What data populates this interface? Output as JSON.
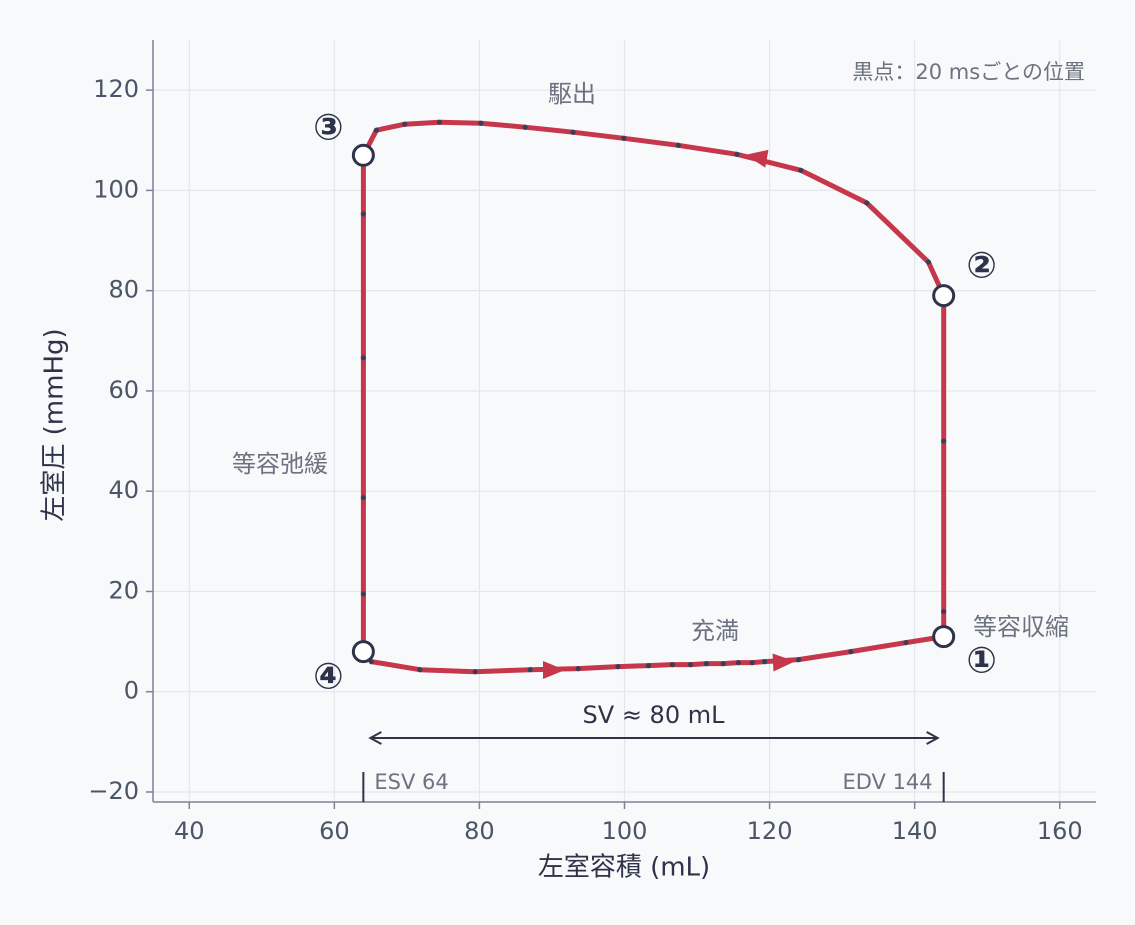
{
  "chart_data": {
    "type": "line",
    "x_label": "左室容積 (mL)",
    "y_label": "左室圧 (mmHg)",
    "xlim": [
      35,
      165
    ],
    "ylim": [
      -22,
      130
    ],
    "xticks": [
      40,
      60,
      80,
      100,
      120,
      140,
      160
    ],
    "yticks": [
      {
        "value": -20,
        "label": "−20"
      },
      0,
      20,
      40,
      60,
      80,
      100,
      120
    ],
    "grid": true,
    "series": [
      {
        "color": "#c7374b",
        "x": [
          144,
          144,
          144,
          144,
          141.9,
          133.4,
          124.3,
          115.5,
          107.4,
          99.9,
          92.9,
          86.3,
          80.2,
          74.5,
          69.7,
          65.8,
          64,
          64,
          64,
          64,
          64,
          64,
          65.1,
          71.8,
          79.4,
          87,
          93.6,
          99.1,
          103.3,
          106.6,
          109.1,
          111.3,
          113.6,
          115.7,
          117.6,
          119.3,
          124,
          131.2,
          138.8
        ],
        "y": [
          11,
          16,
          50,
          79,
          85.7,
          97.5,
          104,
          107.2,
          109,
          110.4,
          111.6,
          112.6,
          113.4,
          113.6,
          113.2,
          112,
          107,
          95.3,
          66.6,
          38.7,
          19.5,
          8,
          6,
          4.4,
          4,
          4.4,
          4.6,
          5,
          5.2,
          5.4,
          5.4,
          5.6,
          5.6,
          5.8,
          5.8,
          6,
          6.4,
          8,
          9.8
        ]
      }
    ],
    "markers": [
      {
        "label": "①",
        "x": 144,
        "y": 11
      },
      {
        "label": "②",
        "x": 144,
        "y": 79
      },
      {
        "label": "③",
        "x": 64,
        "y": 107
      },
      {
        "label": "④",
        "x": 64,
        "y": 8
      }
    ],
    "annotations": [
      "駆出",
      "等容弛緩",
      "充満",
      "等容収縮",
      "黒点：20 msごとの位置"
    ],
    "sv_label": "SV ≈ 80 mL",
    "esv": {
      "label": "ESV 64",
      "value": 64
    },
    "edv": {
      "label": "EDV 144",
      "value": 144
    }
  }
}
